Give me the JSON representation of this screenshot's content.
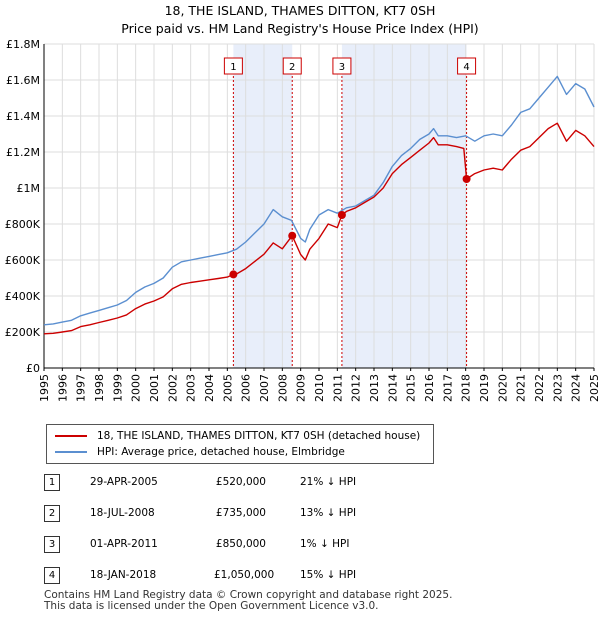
{
  "title": {
    "line1": "18, THE ISLAND, THAMES DITTON, KT7 0SH",
    "line2": "Price paid vs. HM Land Registry's House Price Index (HPI)"
  },
  "colors": {
    "red": "#cc0000",
    "blue": "#5b8fd0",
    "band": "#e8eefa"
  },
  "legend": {
    "red_label": "18, THE ISLAND, THAMES DITTON, KT7 0SH (detached house)",
    "blue_label": "HPI: Average price, detached house, Elmbridge"
  },
  "transactions": [
    {
      "num": "1",
      "date": "29-APR-2005",
      "price": "£520,000",
      "hpi": "21% ↓ HPI"
    },
    {
      "num": "2",
      "date": "18-JUL-2008",
      "price": "£735,000",
      "hpi": "13% ↓ HPI"
    },
    {
      "num": "3",
      "date": "01-APR-2011",
      "price": "£850,000",
      "hpi": "1% ↓ HPI"
    },
    {
      "num": "4",
      "date": "18-JAN-2018",
      "price": "£1,050,000",
      "hpi": "15% ↓ HPI"
    }
  ],
  "footer": {
    "line1": "Contains HM Land Registry data © Crown copyright and database right 2025.",
    "line2": "This data is licensed under the Open Government Licence v3.0."
  },
  "chart_data": {
    "type": "line",
    "xlim": [
      1995,
      2025
    ],
    "ylim": [
      0,
      1800000
    ],
    "yticks": [
      {
        "value": 0,
        "label": "£0"
      },
      {
        "value": 200000,
        "label": "£200K"
      },
      {
        "value": 400000,
        "label": "£400K"
      },
      {
        "value": 600000,
        "label": "£600K"
      },
      {
        "value": 800000,
        "label": "£800K"
      },
      {
        "value": 1000000,
        "label": "£1M"
      },
      {
        "value": 1200000,
        "label": "£1.2M"
      },
      {
        "value": 1400000,
        "label": "£1.4M"
      },
      {
        "value": 1600000,
        "label": "£1.6M"
      },
      {
        "value": 1800000,
        "label": "£1.8M"
      }
    ],
    "xticks": [
      "1995",
      "1996",
      "1997",
      "1998",
      "1999",
      "2000",
      "2001",
      "2002",
      "2003",
      "2004",
      "2005",
      "2006",
      "2007",
      "2008",
      "2009",
      "2010",
      "2011",
      "2012",
      "2013",
      "2014",
      "2015",
      "2016",
      "2017",
      "2018",
      "2019",
      "2020",
      "2021",
      "2022",
      "2023",
      "2024",
      "2025"
    ],
    "bands": [
      [
        2005.33,
        2008.54
      ],
      [
        2011.25,
        2018.05
      ]
    ],
    "markers": [
      {
        "label": "1",
        "x": 2005.33,
        "y": 520000
      },
      {
        "label": "2",
        "x": 2008.54,
        "y": 735000
      },
      {
        "label": "3",
        "x": 2011.25,
        "y": 850000
      },
      {
        "label": "4",
        "x": 2018.05,
        "y": 1050000
      }
    ],
    "series": [
      {
        "name": "HPI: Average price, detached house, Elmbridge",
        "color": "#5b8fd0",
        "x": [
          1995.0,
          1995.5,
          1996.0,
          1996.5,
          1997.0,
          1997.5,
          1998.0,
          1998.5,
          1999.0,
          1999.5,
          2000.0,
          2000.5,
          2001.0,
          2001.5,
          2002.0,
          2002.5,
          2003.0,
          2003.5,
          2004.0,
          2004.5,
          2005.0,
          2005.5,
          2006.0,
          2006.5,
          2007.0,
          2007.5,
          2008.0,
          2008.5,
          2009.0,
          2009.25,
          2009.5,
          2010.0,
          2010.5,
          2011.0,
          2011.5,
          2012.0,
          2012.5,
          2013.0,
          2013.5,
          2014.0,
          2014.5,
          2015.0,
          2015.5,
          2016.0,
          2016.25,
          2016.5,
          2017.0,
          2017.5,
          2018.0,
          2018.5,
          2019.0,
          2019.5,
          2020.0,
          2020.5,
          2021.0,
          2021.5,
          2022.0,
          2022.5,
          2023.0,
          2023.5,
          2024.0,
          2024.5,
          2025.0
        ],
        "y": [
          240000,
          245000,
          255000,
          265000,
          290000,
          305000,
          320000,
          335000,
          350000,
          375000,
          420000,
          450000,
          470000,
          500000,
          560000,
          590000,
          600000,
          610000,
          620000,
          630000,
          640000,
          660000,
          700000,
          750000,
          800000,
          880000,
          840000,
          820000,
          720000,
          700000,
          770000,
          850000,
          880000,
          860000,
          890000,
          900000,
          930000,
          960000,
          1030000,
          1120000,
          1180000,
          1220000,
          1270000,
          1300000,
          1330000,
          1290000,
          1290000,
          1280000,
          1290000,
          1260000,
          1290000,
          1300000,
          1290000,
          1350000,
          1420000,
          1440000,
          1500000,
          1560000,
          1620000,
          1520000,
          1580000,
          1550000,
          1450000
        ]
      },
      {
        "name": "18, THE ISLAND, THAMES DITTON, KT7 0SH (detached house)",
        "color": "#cc0000",
        "x": [
          1995.0,
          1995.5,
          1996.0,
          1996.5,
          1997.0,
          1997.5,
          1998.0,
          1998.5,
          1999.0,
          1999.5,
          2000.0,
          2000.5,
          2001.0,
          2001.5,
          2002.0,
          2002.5,
          2003.0,
          2003.5,
          2004.0,
          2004.5,
          2005.0,
          2005.33,
          2005.5,
          2006.0,
          2006.5,
          2007.0,
          2007.5,
          2008.0,
          2008.54,
          2009.0,
          2009.25,
          2009.5,
          2010.0,
          2010.5,
          2011.0,
          2011.25,
          2011.5,
          2012.0,
          2012.5,
          2013.0,
          2013.5,
          2014.0,
          2014.5,
          2015.0,
          2015.5,
          2016.0,
          2016.25,
          2016.5,
          2017.0,
          2017.5,
          2017.9,
          2018.05,
          2018.5,
          2019.0,
          2019.5,
          2020.0,
          2020.5,
          2021.0,
          2021.5,
          2022.0,
          2022.5,
          2023.0,
          2023.5,
          2024.0,
          2024.5,
          2025.0
        ],
        "y": [
          190000,
          193000,
          200000,
          208000,
          230000,
          240000,
          253000,
          265000,
          278000,
          295000,
          330000,
          355000,
          372000,
          395000,
          440000,
          465000,
          475000,
          482000,
          490000,
          497000,
          505000,
          520000,
          522000,
          552000,
          592000,
          632000,
          695000,
          662000,
          735000,
          630000,
          600000,
          660000,
          720000,
          800000,
          780000,
          850000,
          870000,
          890000,
          920000,
          950000,
          1000000,
          1080000,
          1130000,
          1170000,
          1210000,
          1250000,
          1280000,
          1240000,
          1240000,
          1230000,
          1220000,
          1050000,
          1080000,
          1100000,
          1110000,
          1100000,
          1160000,
          1210000,
          1230000,
          1280000,
          1330000,
          1360000,
          1260000,
          1320000,
          1290000,
          1230000
        ]
      }
    ]
  }
}
